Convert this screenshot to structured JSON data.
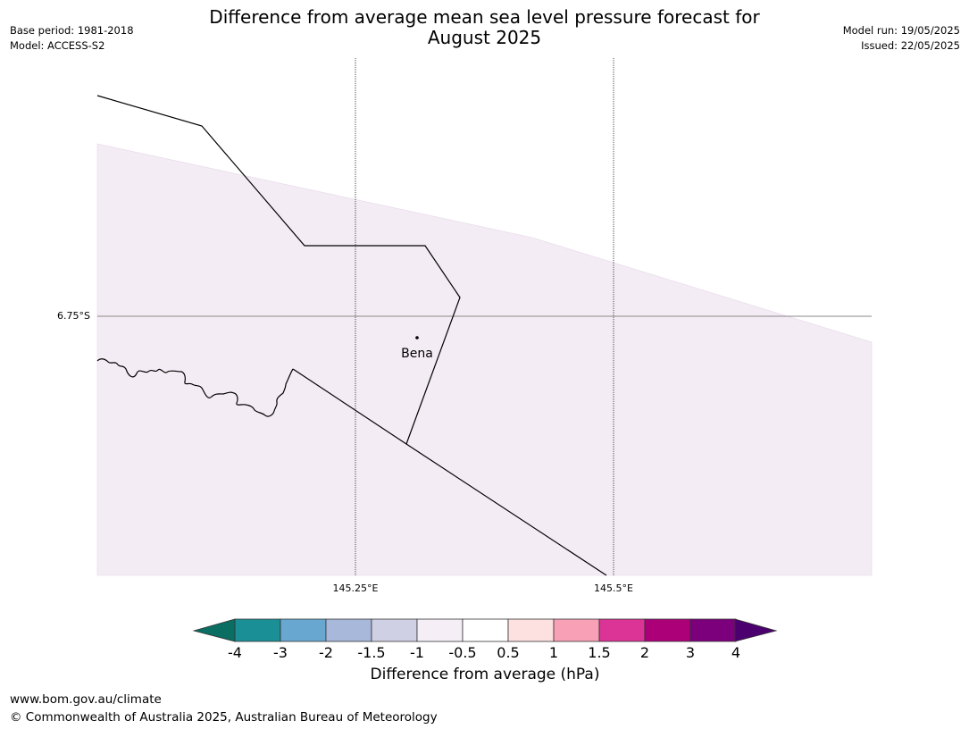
{
  "header": {
    "title_line1": "Difference from average mean sea level pressure forecast for",
    "title_line2": "August 2025",
    "base_period": "Base period: 1981-2018",
    "model": "Model: ACCESS-S2",
    "model_run": "Model run: 19/05/2025",
    "issued": "Issued: 22/05/2025"
  },
  "map": {
    "lat_label": "6.75°S",
    "lon_labels": [
      "145.25°E",
      "145.5°E"
    ],
    "town": "Bena",
    "shaded_region_color": "#f3ecf4",
    "shaded_region_meaning": "-1 to -0.5 hPa"
  },
  "colorbar": {
    "label": "Difference from average (hPa)",
    "ticks": [
      "-4",
      "-3",
      "-2",
      "-1.5",
      "-1",
      "-0.5",
      "0.5",
      "1",
      "1.5",
      "2",
      "3",
      "4"
    ],
    "colors": [
      "#1a9096",
      "#68a8d0",
      "#a8b8da",
      "#d0d0e4",
      "#f5eef7",
      "#ffffff",
      "#fde0e0",
      "#f8a0b6",
      "#dc3496",
      "#ac0078",
      "#7c007c"
    ],
    "extend_low_color": "#0a6e62",
    "extend_high_color": "#4c0070"
  },
  "footer": {
    "url": "www.bom.gov.au/climate",
    "copyright": "© Commonwealth of Australia 2025, Australian Bureau of Meteorology"
  }
}
